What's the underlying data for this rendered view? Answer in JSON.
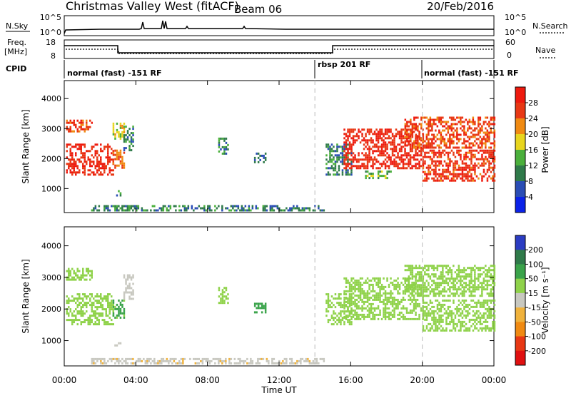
{
  "header": {
    "title": "Christmas Valley West (fitACF)",
    "beam": "Beam 06",
    "date": "20/Feb/2016"
  },
  "nsky_panel": {
    "left_label": "N.Sky",
    "right_label": "N.Search",
    "left_ticks": [
      "10^5",
      "10^0"
    ],
    "right_ticks": [
      "10^5",
      "10^0"
    ]
  },
  "freq_panel": {
    "left_label_line1": "Freq.",
    "left_label_line2": "[MHz]",
    "right_label": "Nave",
    "left_ticks": [
      "18",
      "8"
    ],
    "right_ticks": [
      "60",
      "0"
    ]
  },
  "cpid": {
    "label": "CPID",
    "segments": [
      {
        "label": "normal (fast) -151 RF",
        "start_hour": 0,
        "end_hour": 14
      },
      {
        "label": "rbsp 201 RF",
        "start_hour": 14,
        "end_hour": 20
      },
      {
        "label": "normal (fast) -151 RF",
        "start_hour": 20,
        "end_hour": 24
      }
    ]
  },
  "x_axis": {
    "label": "Time UT",
    "tick_labels": [
      "00:00",
      "04:00",
      "08:00",
      "12:00",
      "16:00",
      "20:00",
      "00:00"
    ],
    "tick_hours": [
      0,
      4,
      8,
      12,
      16,
      20,
      24
    ]
  },
  "chart_data": [
    {
      "type": "heatmap",
      "title": "",
      "xlabel": "Time UT",
      "ylabel": "Slant Range [km]",
      "xlim_hours": [
        0,
        24
      ],
      "ylim": [
        200,
        4600
      ],
      "y_tick_labels": [
        "1000",
        "2000",
        "3000",
        "4000"
      ],
      "y_ticks": [
        1000,
        2000,
        3000,
        4000
      ],
      "colorbar": {
        "label": "Power [dB]",
        "tick_labels": [
          "4",
          "8",
          "12",
          "16",
          "20",
          "24",
          "28"
        ],
        "colors": [
          "#0b22e8",
          "#2a4db5",
          "#2f7a4a",
          "#4bb03c",
          "#e8d51e",
          "#f08a12",
          "#e83814",
          "#ee1a0e"
        ]
      },
      "echo_regions": [
        {
          "start_hour": 0.1,
          "end_hour": 2.7,
          "range_low": 1500,
          "range_high": 2500,
          "power_db": 28
        },
        {
          "start_hour": 0.1,
          "end_hour": 1.5,
          "range_low": 2900,
          "range_high": 3300,
          "power_db": 26
        },
        {
          "start_hour": 2.7,
          "end_hour": 3.3,
          "range_low": 1700,
          "range_high": 2300,
          "power_db": 24
        },
        {
          "start_hour": 2.8,
          "end_hour": 3.1,
          "range_low": 750,
          "range_high": 950,
          "power_db": 10
        },
        {
          "start_hour": 2.7,
          "end_hour": 3.3,
          "range_low": 2700,
          "range_high": 3200,
          "power_db": 18
        },
        {
          "start_hour": 3.3,
          "end_hour": 3.8,
          "range_low": 2300,
          "range_high": 3100,
          "power_db": 10
        },
        {
          "start_hour": 1.5,
          "end_hour": 14.5,
          "range_low": 280,
          "range_high": 450,
          "power_db": 10
        },
        {
          "start_hour": 8.6,
          "end_hour": 9.1,
          "range_low": 2200,
          "range_high": 2700,
          "power_db": 10
        },
        {
          "start_hour": 10.6,
          "end_hour": 11.2,
          "range_low": 1900,
          "range_high": 2200,
          "power_db": 8
        },
        {
          "start_hour": 14.6,
          "end_hour": 16.0,
          "range_low": 1500,
          "range_high": 2500,
          "power_db": 10
        },
        {
          "start_hour": 15.6,
          "end_hour": 20.0,
          "range_low": 1700,
          "range_high": 3000,
          "power_db": 28
        },
        {
          "start_hour": 20.0,
          "end_hour": 24.0,
          "range_low": 1300,
          "range_high": 2300,
          "power_db": 27
        },
        {
          "start_hour": 16.8,
          "end_hour": 18.2,
          "range_low": 1350,
          "range_high": 1600,
          "power_db": 14
        },
        {
          "start_hour": 19.0,
          "end_hour": 24.0,
          "range_low": 2400,
          "range_high": 3400,
          "power_db": 26
        }
      ]
    },
    {
      "type": "heatmap",
      "title": "",
      "xlabel": "Time UT",
      "ylabel": "Slant Range [km]",
      "xlim_hours": [
        0,
        24
      ],
      "ylim": [
        200,
        4600
      ],
      "y_tick_labels": [
        "1000",
        "2000",
        "3000",
        "4000"
      ],
      "y_ticks": [
        1000,
        2000,
        3000,
        4000
      ],
      "colorbar": {
        "label": "Velocity [m s⁻¹]",
        "tick_labels": [
          "200",
          "100",
          "50",
          "15",
          "-15",
          "-50",
          "-100",
          "-200"
        ],
        "colors": [
          "#2b3cc2",
          "#2f7a4a",
          "#3aa34a",
          "#8fd24a",
          "#c8c8c0",
          "#f0b23c",
          "#f08a12",
          "#e83814",
          "#e01010"
        ]
      },
      "echo_regions": [
        {
          "start_hour": 0.1,
          "end_hour": 2.7,
          "range_low": 1500,
          "range_high": 2500,
          "velocity": 0
        },
        {
          "start_hour": 0.1,
          "end_hour": 1.5,
          "range_low": 2900,
          "range_high": 3300,
          "velocity": 0
        },
        {
          "start_hour": 2.7,
          "end_hour": 3.3,
          "range_low": 1700,
          "range_high": 2300,
          "velocity": 25
        },
        {
          "start_hour": 2.8,
          "end_hour": 3.1,
          "range_low": 750,
          "range_high": 950,
          "velocity": -40
        },
        {
          "start_hour": 3.3,
          "end_hour": 3.8,
          "range_low": 2300,
          "range_high": 3100,
          "velocity": -30
        },
        {
          "start_hour": 1.5,
          "end_hour": 14.5,
          "range_low": 280,
          "range_high": 450,
          "velocity": -40
        },
        {
          "start_hour": 8.6,
          "end_hour": 9.1,
          "range_low": 2200,
          "range_high": 2700,
          "velocity": 0
        },
        {
          "start_hour": 10.6,
          "end_hour": 11.2,
          "range_low": 1900,
          "range_high": 2200,
          "velocity": 30
        },
        {
          "start_hour": 14.6,
          "end_hour": 16.0,
          "range_low": 1500,
          "range_high": 2500,
          "velocity": 0
        },
        {
          "start_hour": 15.6,
          "end_hour": 20.0,
          "range_low": 1700,
          "range_high": 3000,
          "velocity": 0
        },
        {
          "start_hour": 20.0,
          "end_hour": 24.0,
          "range_low": 1300,
          "range_high": 2300,
          "velocity": 0
        },
        {
          "start_hour": 19.0,
          "end_hour": 24.0,
          "range_low": 2400,
          "range_high": 3400,
          "velocity": 0
        }
      ]
    }
  ]
}
